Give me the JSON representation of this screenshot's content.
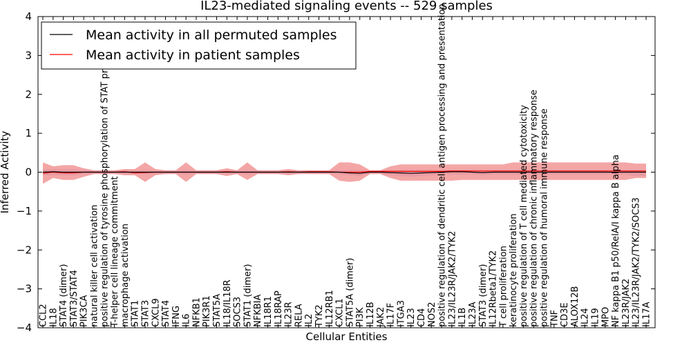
{
  "chart_data": {
    "type": "line",
    "title": "IL23-mediated signaling events -- 529 samples",
    "xlabel": "Cellular Entities",
    "ylabel": "Inferred Activity",
    "ylim": [
      -4,
      4
    ],
    "yticks": [
      "4",
      "3",
      "2",
      "1",
      "0",
      "−1",
      "−2",
      "−3",
      "−4"
    ],
    "legend": {
      "placement": "top-left",
      "entries": [
        {
          "label": "Mean activity in all permuted samples",
          "color": "#000000"
        },
        {
          "label": "Mean activity in patient samples",
          "color": "#ff0000"
        }
      ]
    },
    "colors": {
      "patient_line": "#ff0000",
      "patient_band": "#f08080",
      "permuted_line": "#000000",
      "permuted_band": "#9999dd"
    },
    "categories": [
      "CCL2",
      "IL18",
      "STAT4 (dimer)",
      "STAT3/STAT4",
      "PIK3CA",
      "natural killer cell activation",
      "positive regulation of tyrosine phosphorylation of STAT protein",
      "T-helper cell lineage commitment",
      "macrophage activation",
      "STAT1",
      "STAT3",
      "CXCL9",
      "STAT4",
      "IFNG",
      "IL6",
      "NFKB1",
      "PIK3R1",
      "STAT5A",
      "IL18/IL18R",
      "SOCS3",
      "STAT1 (dimer)",
      "NFKBIA",
      "IL18R1",
      "IL18RAP",
      "IL23R",
      "RELA",
      "IL2",
      "TYK2",
      "IL12RB1",
      "CXCL1",
      "STAT5A (dimer)",
      "PI3K",
      "IL12B",
      "JAK2",
      "IL17F",
      "ITGA3",
      "IL23",
      "CD4",
      "NOS2",
      "positive regulation of dendritic cell antigen processing and presentation",
      "IL23/IL23R/JAK2/TYK2",
      "IL1B",
      "IL23A",
      "STAT3 (dimer)",
      "IL12Rbeta1/TYK2",
      "T cell proliferation",
      "keratinocyte proliferation",
      "positive regulation of T cell mediated cytotoxicity",
      "positive regulation of chronic inflammatory response",
      "positive regulation of humoral immune response",
      "TNF",
      "CD3E",
      "ALOX12B",
      "IL24",
      "IL19",
      "MPO",
      "NF kappa B1 p50/RelA/I kappa B alpha",
      "IL23R/JAK2",
      "IL23/IL23R/JAK2/TYK2/SOCS3",
      "IL17A"
    ],
    "series": [
      {
        "name": "Mean activity in patient samples",
        "values": [
          -0.03,
          0.0,
          -0.02,
          -0.02,
          0.0,
          0.0,
          0.0,
          0.0,
          0.01,
          -0.02,
          -0.01,
          0.0,
          0.0,
          0.0,
          0.0,
          0.0,
          0.0,
          0.0,
          0.01,
          0.0,
          0.0,
          0.0,
          0.0,
          0.0,
          0.01,
          0.0,
          0.01,
          0.01,
          0.01,
          0.0,
          0.0,
          0.0,
          0.02,
          0.02,
          0.02,
          0.02,
          0.02,
          0.02,
          0.02,
          0.02,
          0.03,
          0.03,
          0.03,
          0.03,
          0.03,
          0.03,
          0.03,
          0.03,
          0.03,
          0.03,
          0.03,
          0.03,
          0.03,
          0.03,
          0.03,
          0.03,
          0.03,
          0.03,
          0.03,
          0.03
        ],
        "upper": [
          0.25,
          0.15,
          0.18,
          0.18,
          0.1,
          0.05,
          0.05,
          0.05,
          0.08,
          0.08,
          0.25,
          0.08,
          0.05,
          0.05,
          0.25,
          0.05,
          0.05,
          0.05,
          0.1,
          0.05,
          0.25,
          0.05,
          0.05,
          0.05,
          0.08,
          0.05,
          0.05,
          0.05,
          0.05,
          0.25,
          0.25,
          0.2,
          0.05,
          0.05,
          0.15,
          0.2,
          0.2,
          0.2,
          0.2,
          0.2,
          0.2,
          0.2,
          0.2,
          0.2,
          0.2,
          0.2,
          0.25,
          0.25,
          0.25,
          0.25,
          0.25,
          0.25,
          0.25,
          0.25,
          0.25,
          0.25,
          0.25,
          0.25,
          0.22,
          0.22
        ],
        "lower": [
          -0.3,
          -0.15,
          -0.2,
          -0.2,
          -0.12,
          -0.05,
          -0.05,
          -0.05,
          -0.08,
          -0.08,
          -0.25,
          -0.08,
          -0.05,
          -0.05,
          -0.25,
          -0.05,
          -0.05,
          -0.05,
          -0.1,
          -0.05,
          -0.2,
          -0.05,
          -0.05,
          -0.05,
          -0.08,
          -0.05,
          -0.05,
          -0.05,
          -0.05,
          -0.22,
          -0.25,
          -0.22,
          -0.05,
          -0.05,
          -0.15,
          -0.22,
          -0.22,
          -0.22,
          -0.22,
          -0.22,
          -0.22,
          -0.2,
          -0.2,
          -0.2,
          -0.2,
          -0.2,
          -0.2,
          -0.2,
          -0.2,
          -0.2,
          -0.2,
          -0.2,
          -0.2,
          -0.2,
          -0.2,
          -0.2,
          -0.2,
          -0.2,
          -0.15,
          -0.15
        ]
      },
      {
        "name": "Mean activity in all permuted samples",
        "values": [
          0.0,
          0.01,
          0.0,
          0.0,
          0.0,
          0.0,
          0.0,
          0.0,
          0.0,
          0.0,
          0.0,
          0.0,
          0.0,
          0.0,
          0.0,
          0.0,
          0.0,
          0.0,
          0.0,
          0.0,
          0.0,
          0.0,
          0.0,
          0.0,
          0.0,
          0.0,
          0.0,
          0.0,
          0.0,
          0.0,
          -0.02,
          -0.03,
          0.0,
          0.0,
          -0.01,
          -0.02,
          -0.03,
          -0.02,
          -0.01,
          0.0,
          0.01,
          0.01,
          0.0,
          -0.01,
          0.0,
          0.0,
          0.0,
          0.0,
          0.0,
          0.0,
          0.0,
          0.0,
          0.0,
          0.0,
          0.0,
          0.0,
          0.0,
          0.0,
          0.0,
          0.0
        ],
        "upper": [
          0.08,
          0.08,
          0.08,
          0.08,
          0.06,
          0.04,
          0.04,
          0.04,
          0.05,
          0.05,
          0.06,
          0.05,
          0.04,
          0.04,
          0.06,
          0.04,
          0.04,
          0.04,
          0.05,
          0.04,
          0.06,
          0.04,
          0.04,
          0.04,
          0.05,
          0.04,
          0.04,
          0.04,
          0.04,
          0.06,
          0.06,
          0.06,
          0.04,
          0.04,
          0.06,
          0.06,
          0.06,
          0.06,
          0.06,
          0.06,
          0.06,
          0.06,
          0.06,
          0.06,
          0.06,
          0.06,
          0.06,
          0.06,
          0.06,
          0.06,
          0.06,
          0.06,
          0.06,
          0.06,
          0.06,
          0.06,
          0.06,
          0.06,
          0.06,
          0.06
        ],
        "lower": [
          -0.08,
          -0.08,
          -0.08,
          -0.08,
          -0.06,
          -0.04,
          -0.04,
          -0.04,
          -0.05,
          -0.05,
          -0.06,
          -0.05,
          -0.04,
          -0.04,
          -0.06,
          -0.04,
          -0.04,
          -0.04,
          -0.05,
          -0.04,
          -0.06,
          -0.04,
          -0.04,
          -0.04,
          -0.05,
          -0.04,
          -0.04,
          -0.04,
          -0.04,
          -0.06,
          -0.08,
          -0.1,
          -0.04,
          -0.04,
          -0.08,
          -0.1,
          -0.12,
          -0.1,
          -0.08,
          -0.06,
          -0.06,
          -0.06,
          -0.06,
          -0.08,
          -0.06,
          -0.06,
          -0.06,
          -0.06,
          -0.06,
          -0.06,
          -0.06,
          -0.06,
          -0.06,
          -0.06,
          -0.06,
          -0.06,
          -0.06,
          -0.06,
          -0.1,
          -0.1
        ]
      }
    ]
  }
}
